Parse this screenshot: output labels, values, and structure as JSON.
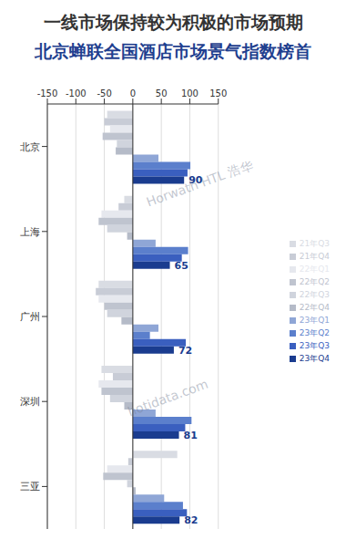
{
  "chart_data": {
    "type": "bar",
    "title": "一线市场保持较为积极的市场预期",
    "subtitle": "北京蝉联全国酒店市场景气指数榜首",
    "orientation": "horizontal",
    "categories": [
      "北京",
      "上海",
      "广州",
      "深圳",
      "三亚"
    ],
    "series": [
      {
        "name": "21年Q3",
        "color": "#d9dce3",
        "values": [
          -45,
          -15,
          -60,
          -55,
          78
        ]
      },
      {
        "name": "21年Q4",
        "color": "#c8ccd6",
        "values": [
          -50,
          -25,
          -65,
          -35,
          -8
        ]
      },
      {
        "name": "22年Q1",
        "color": "#e6e8ee",
        "values": [
          -40,
          -55,
          -60,
          -60,
          -45
        ]
      },
      {
        "name": "22年Q2",
        "color": "#bfc4cf",
        "values": [
          -53,
          -60,
          -50,
          -55,
          -52
        ]
      },
      {
        "name": "22年Q3",
        "color": "#d0d4dd",
        "values": [
          -28,
          -45,
          -45,
          -40,
          -10
        ]
      },
      {
        "name": "22年Q4",
        "color": "#b5bbc8",
        "values": [
          -30,
          -10,
          -20,
          -15,
          5
        ]
      },
      {
        "name": "23年Q1",
        "color": "#8fa6d6",
        "values": [
          45,
          40,
          45,
          40,
          55
        ]
      },
      {
        "name": "23年Q2",
        "color": "#5b7fcc",
        "values": [
          101,
          97,
          30,
          103,
          88
        ]
      },
      {
        "name": "23年Q3",
        "color": "#3a5fbf",
        "values": [
          96,
          86,
          93,
          92,
          95
        ]
      },
      {
        "name": "23年Q4",
        "color": "#1a3c8f",
        "values": [
          90,
          65,
          72,
          81,
          82
        ],
        "data_labels": true
      }
    ],
    "xlim": [
      -150,
      150
    ],
    "xticks": [
      -150,
      -100,
      -50,
      0,
      50,
      100,
      150
    ],
    "grid": true,
    "legend": "right",
    "annotations": [
      "Horwath HTL 浩华",
      "hotidata.com"
    ]
  }
}
